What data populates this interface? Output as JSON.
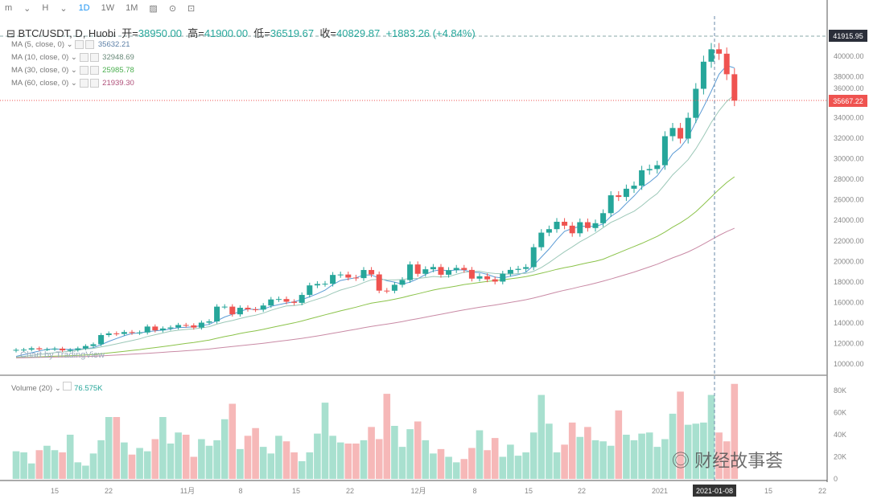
{
  "toolbar": {
    "items": [
      "m",
      "H",
      "1D",
      "1W",
      "1M"
    ],
    "active": "1D"
  },
  "legend": {
    "symbol": "BTC/USDT, D, Huobi",
    "open_label": "开",
    "open": "38950.00",
    "high_label": "高",
    "high": "41900.00",
    "low_label": "低",
    "low": "36519.67",
    "close_label": "收",
    "close": "40829.87",
    "change": "+1883.26 (+4.84%)"
  },
  "ma": [
    {
      "label": "MA (5, close, 0)",
      "value": "35632.21",
      "color": "#5b9bd5"
    },
    {
      "label": "MA (10, close, 0)",
      "value": "32948.69",
      "color": "#8fb8a8"
    },
    {
      "label": "MA (30, close, 0)",
      "value": "25985.78",
      "color": "#4caf50"
    },
    {
      "label": "MA (60, close, 0)",
      "value": "21939.30",
      "color": "#b0507a"
    }
  ],
  "volume": {
    "label": "Volume (20)",
    "value": "76.575K"
  },
  "watermark": "Chart by TradingView",
  "wechat": "财经故事荟",
  "colors": {
    "up": "#26a69a",
    "down": "#ef5350",
    "up_vol": "#a8e0cf",
    "down_vol": "#f6b8b8"
  },
  "chart_data": {
    "type": "candlestick",
    "first_open": 11300,
    "closes": [
      11380,
      11400,
      11530,
      11430,
      11430,
      11500,
      11330,
      11370,
      11520,
      11750,
      11920,
      12820,
      12980,
      12930,
      13110,
      13030,
      13070,
      13650,
      13280,
      13460,
      13560,
      13800,
      13760,
      13550,
      14030,
      14150,
      15590,
      15590,
      14840,
      15480,
      15330,
      15300,
      15700,
      16290,
      16330,
      16070,
      15960,
      16730,
      17660,
      17800,
      17820,
      18680,
      18720,
      18420,
      18370,
      19160,
      18730,
      17150,
      17140,
      17720,
      18180,
      19700,
      18790,
      19230,
      19450,
      18700,
      19150,
      19360,
      19170,
      18320,
      18550,
      18250,
      18030,
      18800,
      19170,
      19270,
      19440,
      21380,
      22800,
      23140,
      23860,
      23480,
      22740,
      23820,
      23250,
      23720,
      24700,
      26440,
      26280,
      27080,
      27380,
      28880,
      29000,
      29370,
      32200,
      33000,
      31970,
      33990,
      36820,
      39460,
      40670,
      40240,
      38240,
      35667
    ],
    "volumes_k": [
      25,
      24,
      14,
      26,
      30,
      26,
      24,
      40,
      15,
      12,
      23,
      35,
      56,
      56,
      33,
      22,
      28,
      25,
      36,
      56,
      32,
      42,
      40,
      20,
      36,
      30,
      35,
      54,
      68,
      27,
      39,
      46,
      29,
      23,
      39,
      34,
      24,
      16,
      24,
      41,
      69,
      39,
      33,
      32,
      32,
      35,
      47,
      36,
      77,
      48,
      29,
      45,
      52,
      35,
      23,
      27,
      20,
      15,
      18,
      28,
      44,
      26,
      37,
      20,
      31,
      21,
      24,
      42,
      76,
      50,
      24,
      31,
      51,
      38,
      47,
      35,
      34,
      30,
      62,
      40,
      35,
      41,
      42,
      29,
      36,
      59,
      79,
      49,
      50,
      51,
      76,
      42,
      34,
      86
    ],
    "price_ticks": [
      "40000.00",
      "38000.00",
      "36000.00",
      "34000.00",
      "32000.00",
      "30000.00",
      "28000.00",
      "26000.00",
      "24000.00",
      "22000.00",
      "20000.00",
      "18000.00",
      "16000.00",
      "14000.00",
      "12000.00",
      "10000.00"
    ],
    "volume_ticks": [
      "80K",
      "60K",
      "40K",
      "20K",
      "0"
    ],
    "x_ticks": [
      "15",
      "22",
      "11月",
      "8",
      "15",
      "22",
      "12月",
      "8",
      "15",
      "22",
      "2021",
      "2021-01-08",
      "15",
      "22"
    ],
    "crosshair_price": "41915.95",
    "last_price": "35667.22"
  }
}
